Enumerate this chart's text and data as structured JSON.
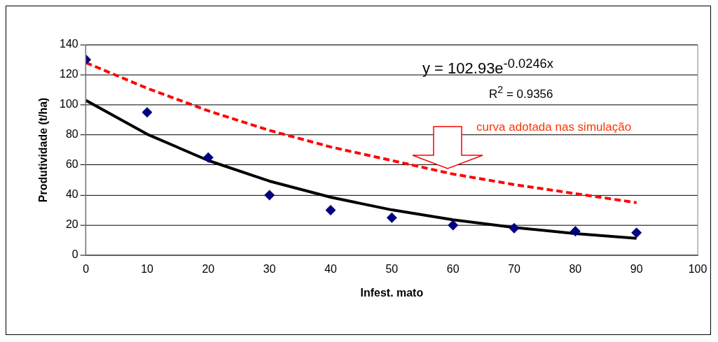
{
  "chart_data": {
    "type": "scatter",
    "xlabel": "Infest. mato",
    "ylabel": "Produtividade (t/ha)",
    "xlim": [
      0,
      100
    ],
    "xticks": [
      0,
      10,
      20,
      30,
      40,
      50,
      60,
      70,
      80,
      90,
      100
    ],
    "ylim": [
      0,
      140
    ],
    "yticks": [
      0,
      20,
      40,
      60,
      80,
      100,
      120,
      140
    ],
    "grid": "y",
    "legend": false,
    "annotations": [
      "y = 102.93e$^{-0.0246x}$",
      "R$^{2}$ = 0.9356",
      "curva adotada nas simulação"
    ],
    "series": [
      {
        "type": "line",
        "color": "#ff0000",
        "line_style": "dashed",
        "marker": "none",
        "x": [
          0,
          10,
          20,
          30,
          40,
          50,
          60,
          70,
          80,
          90
        ],
        "values": [
          128,
          111,
          96,
          83,
          72,
          63,
          54,
          47,
          41,
          35
        ]
      },
      {
        "type": "line",
        "color": "#000000",
        "line_style": "solid",
        "marker": "none",
        "x": [
          0,
          10,
          20,
          30,
          40,
          50,
          60,
          70,
          80,
          90
        ],
        "values": [
          102.9,
          80.5,
          63,
          49.3,
          38.6,
          30.2,
          23.6,
          18.5,
          14.4,
          11.3
        ]
      },
      {
        "color": "#000080",
        "marker": "diamond",
        "x": [
          0,
          10,
          20,
          30,
          40,
          50,
          60,
          70,
          80,
          90
        ],
        "values": [
          130,
          95,
          65,
          40,
          30,
          25,
          20,
          18,
          16,
          15
        ]
      }
    ]
  }
}
